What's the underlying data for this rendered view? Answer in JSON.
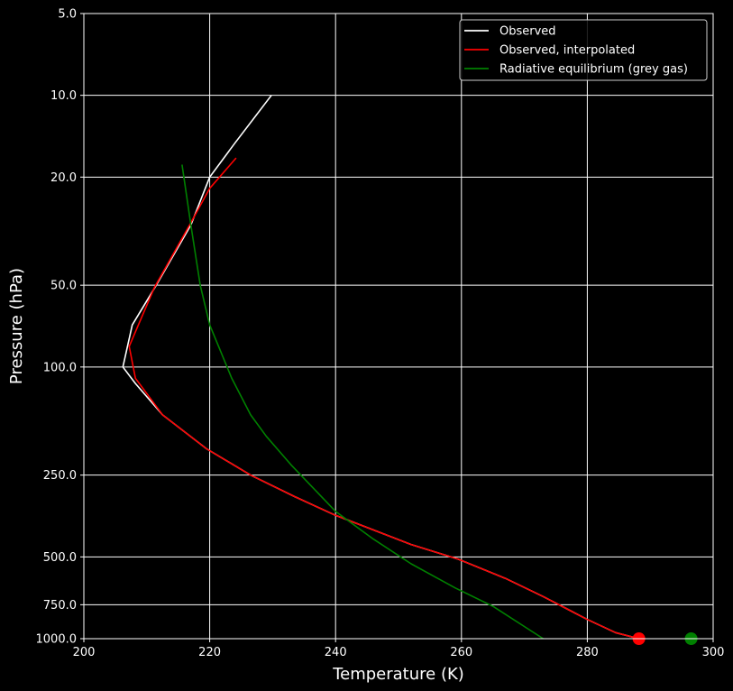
{
  "chart_data": {
    "type": "line",
    "title": "",
    "xlabel": "Temperature (K)",
    "ylabel": "Pressure (hPa)",
    "xlim": [
      200,
      300
    ],
    "ylim": [
      1000,
      5
    ],
    "yscale": "log",
    "x_ticks": [
      "200",
      "220",
      "240",
      "260",
      "280",
      "300"
    ],
    "y_ticks": [
      "5.0",
      "10.0",
      "20.0",
      "50.0",
      "100.0",
      "250.0",
      "500.0",
      "750.0",
      "1000.0"
    ],
    "grid": true,
    "legend_position": "top-right",
    "background": "#000000",
    "foreground": "#ffffff",
    "series": [
      {
        "name": "Observed",
        "color": "#ffffff",
        "points": [
          [
            229.8,
            10
          ],
          [
            224,
            15
          ],
          [
            220,
            20
          ],
          [
            217,
            30
          ],
          [
            211.5,
            50
          ],
          [
            207.7,
            70
          ],
          [
            206.2,
            100
          ],
          [
            208.2,
            115
          ],
          [
            212.5,
            150
          ],
          [
            219.5,
            200
          ],
          [
            226.5,
            250
          ],
          [
            233.5,
            300
          ],
          [
            239.8,
            350
          ],
          [
            252,
            450
          ],
          [
            259.5,
            510
          ],
          [
            267,
            600
          ],
          [
            273,
            700
          ],
          [
            280,
            850
          ],
          [
            284.5,
            950
          ],
          [
            288.2,
            1000
          ]
        ]
      },
      {
        "name": "Observed, interpolated",
        "color": "#ff0000",
        "points": [
          [
            224.2,
            17
          ],
          [
            220,
            22
          ],
          [
            216.8,
            30
          ],
          [
            211.2,
            51
          ],
          [
            207.2,
            84
          ],
          [
            208.2,
            110
          ],
          [
            212.5,
            150
          ],
          [
            219.5,
            200
          ],
          [
            226.5,
            250
          ],
          [
            233.5,
            300
          ],
          [
            239.8,
            350
          ],
          [
            252,
            450
          ],
          [
            259.5,
            510
          ],
          [
            267,
            600
          ],
          [
            273,
            700
          ],
          [
            280,
            850
          ],
          [
            284.5,
            950
          ],
          [
            288.2,
            1000
          ]
        ]
      },
      {
        "name": "Radiative equilibrium (grey gas)",
        "color": "#008000",
        "points": [
          [
            215.6,
            18
          ],
          [
            217,
            30
          ],
          [
            218.5,
            50
          ],
          [
            220,
            70
          ],
          [
            221.5,
            85
          ],
          [
            223.5,
            110
          ],
          [
            226.5,
            150
          ],
          [
            229,
            180
          ],
          [
            233,
            230
          ],
          [
            240,
            340
          ],
          [
            246,
            430
          ],
          [
            252,
            530
          ],
          [
            259,
            650
          ],
          [
            265,
            760
          ],
          [
            273,
            1000
          ]
        ]
      }
    ],
    "markers": [
      {
        "x": 288.2,
        "y": 1000,
        "color": "#ff0000"
      },
      {
        "x": 296.5,
        "y": 1000,
        "color": "#008000"
      }
    ]
  }
}
